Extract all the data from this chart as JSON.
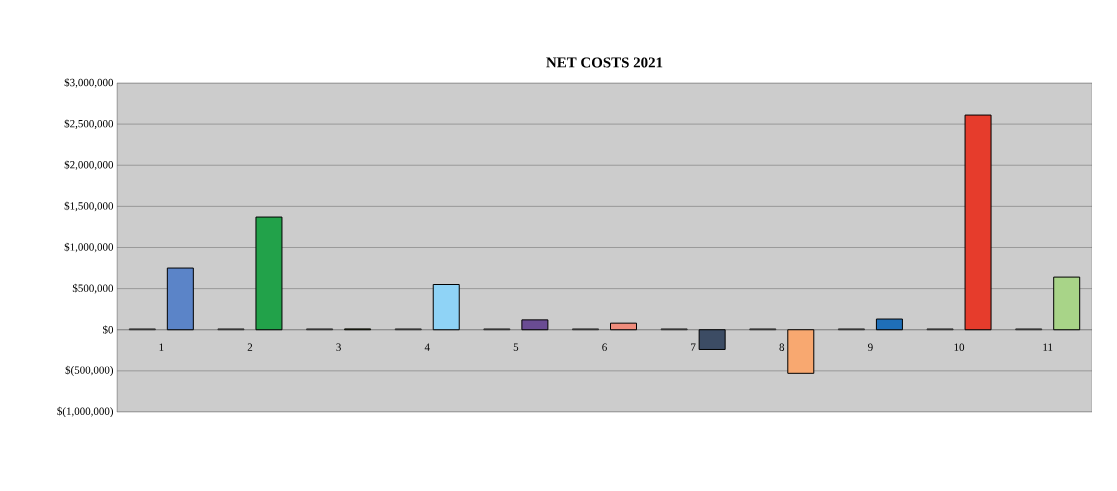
{
  "chart_data": {
    "type": "bar",
    "title": "NET COSTS 2021",
    "categories": [
      "1",
      "2",
      "3",
      "4",
      "5",
      "6",
      "7",
      "8",
      "9",
      "10",
      "11"
    ],
    "series": [
      {
        "color": "#333333",
        "values": [
          10000,
          10000,
          10000,
          10000,
          10000,
          10000,
          10000,
          10000,
          10000,
          10000,
          10000
        ]
      },
      {
        "colors": [
          "#5b84c8",
          "#22a24a",
          "#8fb24c",
          "#8fd3f6",
          "#6a4c93",
          "#f08c7c",
          "#3c4c64",
          "#f8a870",
          "#1f6fb8",
          "#e63c2c",
          "#a8d488"
        ],
        "values": [
          750000,
          1370000,
          10000,
          550000,
          120000,
          80000,
          -240000,
          -530000,
          130000,
          2610000,
          640000
        ]
      }
    ],
    "ylim": [
      -1000000,
      3000000
    ],
    "yticks": [
      {
        "value": -1000000,
        "label": "$(1,000,000)"
      },
      {
        "value": -500000,
        "label": "$(500,000)"
      },
      {
        "value": 0,
        "label": "$0"
      },
      {
        "value": 500000,
        "label": "$500,000"
      },
      {
        "value": 1000000,
        "label": "$1,000,000"
      },
      {
        "value": 1500000,
        "label": "$1,500,000"
      },
      {
        "value": 2000000,
        "label": "$2,000,000"
      },
      {
        "value": 2500000,
        "label": "$2,500,000"
      },
      {
        "value": 3000000,
        "label": "$3,000,000"
      }
    ],
    "grid": "y"
  }
}
